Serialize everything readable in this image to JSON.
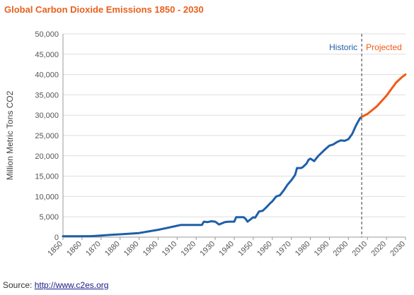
{
  "chart_data": {
    "type": "line",
    "title": "Global Carbon Dioxide Emissions 1850 - 2030",
    "ylabel": "Million Metric Tons CO2",
    "xlabel": "",
    "xlim": [
      1850,
      2030
    ],
    "ylim": [
      0,
      50000
    ],
    "x_ticks": [
      "1850",
      "1860",
      "1870",
      "1880",
      "1890",
      "1900",
      "1910",
      "1920",
      "1930",
      "1940",
      "1950",
      "1960",
      "1970",
      "1980",
      "1990",
      "2000",
      "2010",
      "2020",
      "2030"
    ],
    "y_ticks": [
      "0",
      "5,000",
      "10,000",
      "15,000",
      "20,000",
      "25,000",
      "30,000",
      "35,000",
      "40,000",
      "45,000",
      "50,000"
    ],
    "grid": "horizontal",
    "divider_year": 2007,
    "annotations": {
      "historic": "Historic",
      "projected": "Projected"
    },
    "colors": {
      "historic": "#1f5fa8",
      "projected": "#f05a14",
      "divider": "#777777",
      "grid": "#dddddd"
    },
    "series": [
      {
        "key": "historic",
        "x": [
          1850,
          1855,
          1860,
          1865,
          1870,
          1875,
          1880,
          1885,
          1890,
          1895,
          1900,
          1905,
          1910,
          1912,
          1915,
          1918,
          1920,
          1923,
          1924,
          1926,
          1928,
          1930,
          1932,
          1935,
          1937,
          1940,
          1941,
          1943,
          1945,
          1946,
          1947,
          1950,
          1951,
          1953,
          1955,
          1957,
          1959,
          1960,
          1962,
          1964,
          1966,
          1968,
          1970,
          1972,
          1973,
          1975,
          1976,
          1978,
          1979,
          1980,
          1982,
          1984,
          1986,
          1988,
          1990,
          1992,
          1994,
          1996,
          1998,
          2000,
          2002,
          2004,
          2006,
          2007
        ],
        "values": [
          200,
          200,
          200,
          250,
          400,
          550,
          700,
          850,
          1000,
          1400,
          1800,
          2300,
          2800,
          3000,
          3000,
          3000,
          3000,
          3000,
          3800,
          3700,
          3900,
          3800,
          3100,
          3700,
          3800,
          3800,
          4900,
          4900,
          4900,
          4500,
          3800,
          4900,
          4800,
          6300,
          6500,
          7400,
          8400,
          8800,
          10000,
          10300,
          11500,
          12900,
          14000,
          15300,
          17000,
          17000,
          17200,
          18100,
          19000,
          19300,
          18700,
          19900,
          20800,
          21700,
          22500,
          22800,
          23400,
          23800,
          23700,
          24100,
          25400,
          27500,
          29200,
          29600
        ]
      },
      {
        "key": "projected",
        "x": [
          2007,
          2010,
          2015,
          2020,
          2025,
          2028,
          2030
        ],
        "values": [
          29600,
          30300,
          32200,
          34800,
          38000,
          39300,
          40000
        ]
      }
    ]
  },
  "source": {
    "label": "Source:",
    "url": "http://www.c2es.org"
  }
}
